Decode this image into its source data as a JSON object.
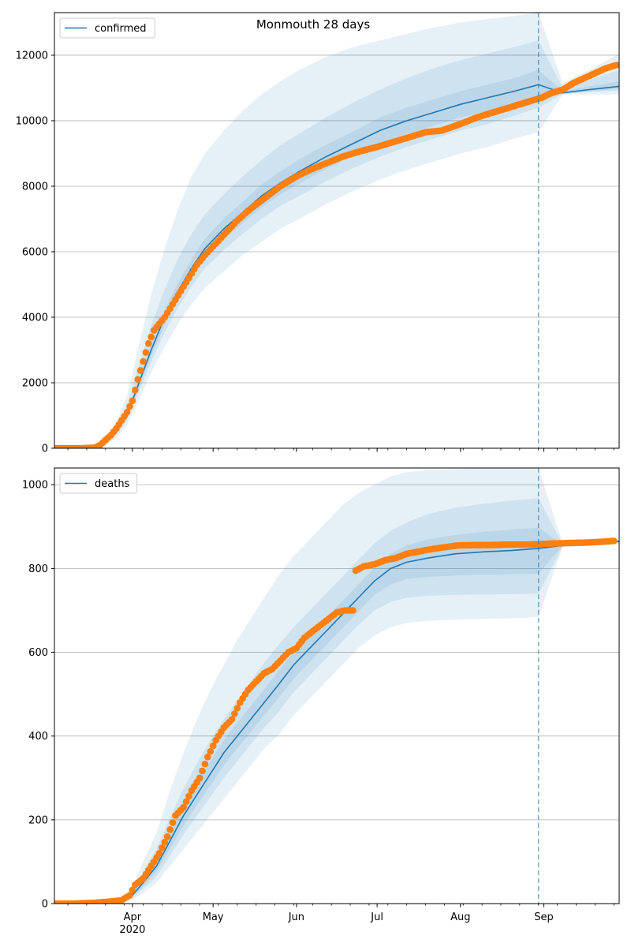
{
  "title": "Monmouth 28 days",
  "x_axis": {
    "ticks": [
      {
        "date": "2020-04-01",
        "label": "Apr"
      },
      {
        "date": "2020-05-01",
        "label": "May"
      },
      {
        "date": "2020-06-01",
        "label": "Jun"
      },
      {
        "date": "2020-07-01",
        "label": "Jul"
      },
      {
        "date": "2020-08-01",
        "label": "Aug"
      },
      {
        "date": "2020-09-01",
        "label": "Sep"
      }
    ],
    "year_label": "2020",
    "range": [
      "2020-03-03",
      "2020-09-29"
    ]
  },
  "colors": {
    "forecast_line": "#1f77b4",
    "observed_points": "#ff7f0e",
    "band_fill": "#1f77b4",
    "grid": "#b0b0b0"
  },
  "chart_data": [
    {
      "type": "line",
      "legend": "confirmed",
      "legend_position": "top-left",
      "grid": "horizontal",
      "ylim": [
        0,
        13300
      ],
      "yticks": [
        0,
        2000,
        4000,
        6000,
        8000,
        10000,
        12000
      ],
      "forecast_start": "2020-08-30",
      "forecast": {
        "x": [
          "2020-03-18",
          "2020-03-23",
          "2020-03-26",
          "2020-03-30",
          "2020-04-03",
          "2020-04-08",
          "2020-04-13",
          "2020-04-18",
          "2020-04-23",
          "2020-04-28",
          "2020-05-05",
          "2020-05-12",
          "2020-05-19",
          "2020-05-26",
          "2020-06-02",
          "2020-06-12",
          "2020-06-22",
          "2020-07-02",
          "2020-07-12",
          "2020-07-22",
          "2020-08-01",
          "2020-08-11",
          "2020-08-21",
          "2020-08-30",
          "2020-09-08",
          "2020-09-18",
          "2020-09-29"
        ],
        "y": [
          0,
          250,
          500,
          1000,
          1900,
          3000,
          4000,
          4800,
          5500,
          6100,
          6700,
          7200,
          7700,
          8100,
          8450,
          8900,
          9300,
          9700,
          10000,
          10250,
          10500,
          10700,
          10900,
          11100,
          10850,
          10950,
          11050
        ]
      },
      "bands": [
        {
          "lower": [
            0,
            150,
            300,
            700,
            1400,
            2300,
            3100,
            3800,
            4400,
            4900,
            5400,
            5900,
            6300,
            6700,
            7000,
            7450,
            7850,
            8200,
            8500,
            8750,
            9000,
            9200,
            9450,
            9650,
            10800,
            10800,
            10800
          ],
          "upper": [
            0,
            400,
            800,
            1600,
            3000,
            4700,
            6100,
            7300,
            8300,
            9000,
            9700,
            10300,
            10800,
            11200,
            11550,
            11950,
            12250,
            12450,
            12650,
            12850,
            13000,
            13100,
            13200,
            13300,
            11150,
            11550,
            12050
          ]
        },
        {
          "lower": [
            0,
            200,
            400,
            850,
            1650,
            2650,
            3550,
            4300,
            4950,
            5500,
            6050,
            6550,
            7000,
            7400,
            7700,
            8150,
            8550,
            8900,
            9200,
            9450,
            9700,
            9900,
            10150,
            10400,
            10820,
            10880,
            10920
          ],
          "upper": [
            0,
            330,
            650,
            1300,
            2400,
            3750,
            4850,
            5800,
            6550,
            7150,
            7750,
            8300,
            8800,
            9250,
            9600,
            10100,
            10550,
            10950,
            11300,
            11600,
            11850,
            12050,
            12250,
            12450,
            11000,
            11250,
            11550
          ]
        },
        {
          "lower": [
            0,
            220,
            450,
            920,
            1780,
            2830,
            3780,
            4550,
            5230,
            5800,
            6380,
            6880,
            7350,
            7750,
            8080,
            8530,
            8930,
            9300,
            9600,
            9850,
            10100,
            10300,
            10500,
            10700,
            10830,
            10900,
            10980
          ],
          "upper": [
            0,
            280,
            550,
            1080,
            2020,
            3170,
            4220,
            5050,
            5770,
            6400,
            7020,
            7520,
            8050,
            8450,
            8820,
            9270,
            9670,
            10100,
            10400,
            10650,
            10900,
            11100,
            11300,
            11550,
            10900,
            11050,
            11200
          ]
        }
      ],
      "observed": {
        "x": [
          "2020-03-03",
          "2020-03-08",
          "2020-03-13",
          "2020-03-18",
          "2020-03-20",
          "2020-03-22",
          "2020-03-24",
          "2020-03-26",
          "2020-03-28",
          "2020-03-30",
          "2020-04-01",
          "2020-04-03",
          "2020-04-05",
          "2020-04-07",
          "2020-04-09",
          "2020-04-11",
          "2020-04-13",
          "2020-04-16",
          "2020-04-19",
          "2020-04-22",
          "2020-04-25",
          "2020-04-28",
          "2020-05-02",
          "2020-05-06",
          "2020-05-10",
          "2020-05-14",
          "2020-05-18",
          "2020-05-22",
          "2020-05-26",
          "2020-06-01",
          "2020-06-06",
          "2020-06-12",
          "2020-06-18",
          "2020-06-24",
          "2020-07-01",
          "2020-07-07",
          "2020-07-13",
          "2020-07-19",
          "2020-07-25",
          "2020-08-01",
          "2020-08-07",
          "2020-08-13",
          "2020-08-19",
          "2020-08-25",
          "2020-08-31",
          "2020-09-04",
          "2020-09-08",
          "2020-09-12",
          "2020-09-16",
          "2020-09-20",
          "2020-09-24",
          "2020-09-28"
        ],
        "y": [
          0,
          0,
          0,
          20,
          100,
          250,
          400,
          600,
          850,
          1100,
          1450,
          2100,
          2650,
          3200,
          3600,
          3800,
          4000,
          4400,
          4800,
          5200,
          5600,
          5900,
          6250,
          6600,
          6950,
          7250,
          7500,
          7750,
          8000,
          8300,
          8500,
          8700,
          8900,
          9050,
          9200,
          9350,
          9500,
          9650,
          9700,
          9900,
          10100,
          10250,
          10400,
          10550,
          10700,
          10850,
          10950,
          11150,
          11300,
          11450,
          11600,
          11700
        ]
      }
    },
    {
      "type": "line",
      "legend": "deaths",
      "legend_position": "top-left",
      "grid": "horizontal",
      "ylim": [
        0,
        1040
      ],
      "yticks": [
        0,
        200,
        400,
        600,
        800,
        1000
      ],
      "forecast_start": "2020-08-30",
      "forecast": {
        "x": [
          "2020-03-25",
          "2020-03-28",
          "2020-04-01",
          "2020-04-05",
          "2020-04-10",
          "2020-04-15",
          "2020-04-20",
          "2020-04-25",
          "2020-04-30",
          "2020-05-05",
          "2020-05-10",
          "2020-05-15",
          "2020-05-20",
          "2020-05-25",
          "2020-05-31",
          "2020-06-06",
          "2020-06-12",
          "2020-06-18",
          "2020-06-24",
          "2020-06-30",
          "2020-07-06",
          "2020-07-12",
          "2020-07-20",
          "2020-07-30",
          "2020-08-10",
          "2020-08-20",
          "2020-08-30",
          "2020-09-08",
          "2020-09-18",
          "2020-09-29"
        ],
        "y": [
          0,
          5,
          20,
          50,
          90,
          150,
          210,
          260,
          310,
          360,
          400,
          440,
          480,
          520,
          570,
          610,
          650,
          690,
          730,
          770,
          800,
          815,
          825,
          835,
          840,
          843,
          848,
          855,
          860,
          865
        ]
      },
      "bands": [
        {
          "lower": [
            0,
            2,
            10,
            25,
            50,
            90,
            130,
            170,
            210,
            250,
            290,
            330,
            370,
            400,
            450,
            490,
            530,
            570,
            610,
            640,
            660,
            670,
            675,
            678,
            680,
            681,
            684,
            852,
            855,
            858
          ],
          "upper": [
            0,
            12,
            40,
            100,
            170,
            270,
            360,
            440,
            510,
            570,
            630,
            680,
            730,
            780,
            830,
            870,
            910,
            950,
            980,
            1000,
            1020,
            1030,
            1035,
            1038,
            1040,
            1040,
            1040,
            860,
            865,
            870
          ]
        },
        {
          "lower": [
            0,
            3,
            14,
            35,
            65,
            115,
            165,
            210,
            255,
            300,
            340,
            380,
            420,
            455,
            505,
            545,
            585,
            625,
            665,
            700,
            720,
            730,
            735,
            737,
            738,
            739,
            740,
            853,
            857,
            861
          ],
          "upper": [
            0,
            8,
            30,
            75,
            130,
            205,
            275,
            335,
            390,
            440,
            485,
            530,
            575,
            615,
            660,
            700,
            740,
            780,
            820,
            860,
            890,
            910,
            930,
            945,
            955,
            962,
            968,
            858,
            863,
            868
          ]
        },
        {
          "lower": [
            0,
            4,
            17,
            42,
            77,
            132,
            187,
            235,
            282,
            330,
            370,
            410,
            450,
            488,
            537,
            577,
            617,
            657,
            697,
            737,
            762,
            775,
            780,
            783,
            785,
            786,
            788,
            854,
            858,
            862
          ],
          "upper": [
            0,
            6,
            24,
            60,
            105,
            170,
            235,
            287,
            340,
            390,
            432,
            472,
            512,
            552,
            602,
            642,
            682,
            722,
            762,
            802,
            835,
            855,
            870,
            880,
            888,
            893,
            897,
            857,
            861,
            867
          ]
        }
      ],
      "observed": {
        "x": [
          "2020-03-03",
          "2020-03-10",
          "2020-03-18",
          "2020-03-24",
          "2020-03-28",
          "2020-03-31",
          "2020-04-02",
          "2020-04-05",
          "2020-04-08",
          "2020-04-11",
          "2020-04-14",
          "2020-04-17",
          "2020-04-20",
          "2020-04-23",
          "2020-04-26",
          "2020-04-29",
          "2020-05-02",
          "2020-05-05",
          "2020-05-08",
          "2020-05-11",
          "2020-05-14",
          "2020-05-17",
          "2020-05-20",
          "2020-05-23",
          "2020-05-26",
          "2020-05-29",
          "2020-06-01",
          "2020-06-04",
          "2020-06-07",
          "2020-06-10",
          "2020-06-13",
          "2020-06-16",
          "2020-06-19",
          "2020-06-22",
          "2020-06-23",
          "2020-06-26",
          "2020-06-30",
          "2020-07-04",
          "2020-07-08",
          "2020-07-12",
          "2020-07-16",
          "2020-07-20",
          "2020-07-25",
          "2020-07-31",
          "2020-08-06",
          "2020-08-12",
          "2020-08-18",
          "2020-08-24",
          "2020-08-30",
          "2020-09-05",
          "2020-09-11",
          "2020-09-17",
          "2020-09-23",
          "2020-09-27"
        ],
        "y": [
          0,
          0,
          2,
          5,
          8,
          20,
          45,
          60,
          90,
          120,
          160,
          210,
          230,
          270,
          300,
          350,
          390,
          420,
          440,
          480,
          510,
          530,
          550,
          560,
          580,
          600,
          610,
          635,
          650,
          665,
          680,
          695,
          700,
          700,
          795,
          805,
          810,
          820,
          825,
          835,
          840,
          845,
          850,
          855,
          856,
          856,
          857,
          857,
          858,
          860,
          861,
          862,
          864,
          866
        ]
      }
    }
  ]
}
